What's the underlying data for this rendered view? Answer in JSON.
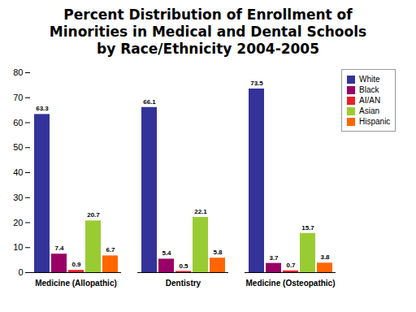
{
  "chart_data": {
    "type": "bar",
    "title": "Percent Distribution of Enrollment of Minorities in Medical and Dental Schools by Race/Ethnicity 2004-2005",
    "categories": [
      "Medicine (Allopathic)",
      "Dentistry",
      "Medicine (Osteopathic)"
    ],
    "series": [
      {
        "name": "White",
        "color": "#333399",
        "values": [
          63.3,
          66.1,
          73.5
        ]
      },
      {
        "name": "Black",
        "color": "#990066",
        "values": [
          7.4,
          5.4,
          3.7
        ]
      },
      {
        "name": "AI/AN",
        "color": "#e8202a",
        "values": [
          0.9,
          0.5,
          0.7
        ]
      },
      {
        "name": "Asian",
        "color": "#99cc33",
        "values": [
          20.7,
          22.1,
          15.7
        ]
      },
      {
        "name": "Hispanic",
        "color": "#ff6600",
        "values": [
          6.7,
          5.8,
          3.8
        ]
      }
    ],
    "ylim": [
      0,
      80
    ],
    "yticks": [
      0,
      10,
      20,
      30,
      40,
      50,
      60,
      70,
      80
    ],
    "legend": "right",
    "data_labels": true
  }
}
